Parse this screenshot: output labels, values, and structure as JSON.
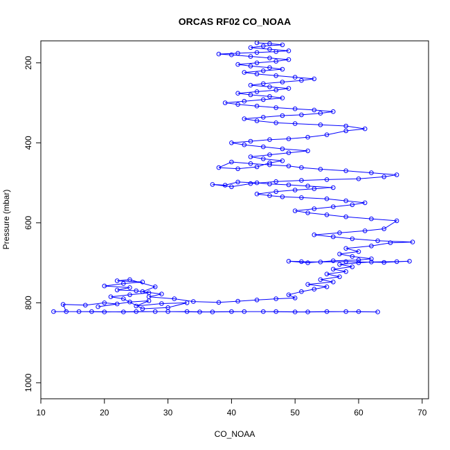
{
  "chart_data": {
    "type": "scatter",
    "title": "ORCAS RF02 CO_NOAA",
    "xlabel": "CO_NOAA",
    "ylabel": "Pressure (mbar)",
    "xlim": [
      10,
      71
    ],
    "ylim": [
      1040,
      145
    ],
    "y_reversed": true,
    "grid": false,
    "connected": true,
    "marker": "open-circle",
    "color": "#0000ff",
    "x_ticks": [
      10,
      20,
      30,
      40,
      50,
      60,
      70
    ],
    "y_ticks": [
      200,
      400,
      600,
      800,
      1000
    ],
    "series": [
      {
        "points": [
          [
            12,
            822
          ],
          [
            16,
            822
          ],
          [
            20,
            823
          ],
          [
            25,
            822
          ],
          [
            30,
            822
          ],
          [
            35,
            823
          ],
          [
            40,
            822
          ],
          [
            45,
            822
          ],
          [
            50,
            823
          ],
          [
            55,
            822
          ],
          [
            60,
            822
          ],
          [
            63,
            823
          ],
          [
            58,
            822
          ],
          [
            52,
            823
          ],
          [
            47,
            822
          ],
          [
            42,
            822
          ],
          [
            37,
            823
          ],
          [
            33,
            822
          ],
          [
            28,
            822
          ],
          [
            23,
            823
          ],
          [
            18,
            822
          ],
          [
            14,
            822
          ],
          [
            13.5,
            804
          ],
          [
            17,
            806
          ],
          [
            20,
            800
          ],
          [
            22,
            803
          ],
          [
            19,
            810
          ],
          [
            24,
            798
          ],
          [
            27,
            795
          ],
          [
            25,
            808
          ],
          [
            29,
            802
          ],
          [
            33,
            800
          ],
          [
            30,
            812
          ],
          [
            26,
            815
          ],
          [
            23,
            790
          ],
          [
            21,
            785
          ],
          [
            24,
            780
          ],
          [
            27,
            775
          ],
          [
            25,
            770
          ],
          [
            22,
            768
          ],
          [
            24,
            762
          ],
          [
            20,
            758
          ],
          [
            23,
            752
          ],
          [
            26,
            748
          ],
          [
            22,
            745
          ],
          [
            24,
            742
          ],
          [
            28,
            760
          ],
          [
            26,
            772
          ],
          [
            29,
            778
          ],
          [
            27,
            785
          ],
          [
            31,
            790
          ],
          [
            34,
            797
          ],
          [
            38,
            799
          ],
          [
            41,
            796
          ],
          [
            44,
            793
          ],
          [
            47,
            790
          ],
          [
            50,
            788
          ],
          [
            49,
            780
          ],
          [
            51,
            772
          ],
          [
            53,
            766
          ],
          [
            55,
            760
          ],
          [
            52,
            754
          ],
          [
            56,
            748
          ],
          [
            54,
            742
          ],
          [
            57,
            735
          ],
          [
            55,
            728
          ],
          [
            58,
            722
          ],
          [
            56,
            716
          ],
          [
            59,
            710
          ],
          [
            57,
            704
          ],
          [
            60,
            700
          ],
          [
            62,
            698
          ],
          [
            66,
            697
          ],
          [
            68,
            696
          ],
          [
            64,
            699
          ],
          [
            58,
            697
          ],
          [
            54,
            698
          ],
          [
            51,
            697
          ],
          [
            49,
            696
          ],
          [
            52,
            700
          ],
          [
            56,
            695
          ],
          [
            60,
            693
          ],
          [
            62,
            690
          ],
          [
            59,
            684
          ],
          [
            57,
            678
          ],
          [
            60,
            672
          ],
          [
            58,
            664
          ],
          [
            62,
            658
          ],
          [
            65,
            650
          ],
          [
            68.5,
            648
          ],
          [
            63,
            645
          ],
          [
            59,
            640
          ],
          [
            56,
            635
          ],
          [
            53,
            630
          ],
          [
            57,
            625
          ],
          [
            61,
            620
          ],
          [
            64,
            615
          ],
          [
            66,
            595
          ],
          [
            62,
            590
          ],
          [
            58,
            585
          ],
          [
            55,
            580
          ],
          [
            52,
            575
          ],
          [
            50,
            570
          ],
          [
            53,
            565
          ],
          [
            56,
            560
          ],
          [
            59,
            555
          ],
          [
            61,
            550
          ],
          [
            58,
            545
          ],
          [
            55,
            540
          ],
          [
            51,
            537
          ],
          [
            48,
            535
          ],
          [
            46,
            532
          ],
          [
            44,
            528
          ],
          [
            47,
            522
          ],
          [
            50,
            518
          ],
          [
            53,
            515
          ],
          [
            56,
            512
          ],
          [
            52,
            508
          ],
          [
            49,
            505
          ],
          [
            46,
            503
          ],
          [
            44,
            500
          ],
          [
            41,
            498
          ],
          [
            39,
            506
          ],
          [
            37,
            504
          ],
          [
            40,
            510
          ],
          [
            43,
            502
          ],
          [
            47,
            497
          ],
          [
            51,
            494
          ],
          [
            55,
            492
          ],
          [
            60,
            490
          ],
          [
            64,
            485
          ],
          [
            66,
            480
          ],
          [
            62,
            475
          ],
          [
            58,
            470
          ],
          [
            54,
            466
          ],
          [
            51,
            462
          ],
          [
            49,
            458
          ],
          [
            46,
            455
          ],
          [
            43,
            452
          ],
          [
            40,
            448
          ],
          [
            38,
            462
          ],
          [
            41,
            465
          ],
          [
            44,
            460
          ],
          [
            46,
            450
          ],
          [
            48,
            445
          ],
          [
            45,
            440
          ],
          [
            43,
            435
          ],
          [
            46,
            430
          ],
          [
            49,
            425
          ],
          [
            52,
            420
          ],
          [
            48,
            415
          ],
          [
            45,
            410
          ],
          [
            42,
            405
          ],
          [
            40,
            400
          ],
          [
            43,
            396
          ],
          [
            46,
            392
          ],
          [
            49,
            390
          ],
          [
            52,
            386
          ],
          [
            55,
            380
          ],
          [
            58,
            370
          ],
          [
            61,
            365
          ],
          [
            58,
            358
          ],
          [
            54,
            355
          ],
          [
            50,
            352
          ],
          [
            47,
            350
          ],
          [
            44,
            345
          ],
          [
            42,
            340
          ],
          [
            45,
            336
          ],
          [
            48,
            332
          ],
          [
            51,
            330
          ],
          [
            54,
            326
          ],
          [
            56,
            322
          ],
          [
            53,
            318
          ],
          [
            50,
            315
          ],
          [
            47,
            312
          ],
          [
            44,
            308
          ],
          [
            41,
            304
          ],
          [
            39,
            300
          ],
          [
            42,
            296
          ],
          [
            45,
            292
          ],
          [
            48,
            288
          ],
          [
            46,
            284
          ],
          [
            43,
            280
          ],
          [
            41,
            276
          ],
          [
            44,
            272
          ],
          [
            47,
            268
          ],
          [
            49,
            264
          ],
          [
            46,
            260
          ],
          [
            43,
            256
          ],
          [
            45,
            252
          ],
          [
            48,
            248
          ],
          [
            51,
            244
          ],
          [
            53,
            240
          ],
          [
            50,
            236
          ],
          [
            47,
            232
          ],
          [
            44,
            228
          ],
          [
            42,
            224
          ],
          [
            45,
            220
          ],
          [
            48,
            216
          ],
          [
            46,
            212
          ],
          [
            43,
            208
          ],
          [
            41,
            204
          ],
          [
            44,
            200
          ],
          [
            47,
            196
          ],
          [
            49,
            192
          ],
          [
            46,
            188
          ],
          [
            43,
            184
          ],
          [
            40,
            180
          ],
          [
            38,
            178
          ],
          [
            41,
            176
          ],
          [
            44,
            174
          ],
          [
            47,
            172
          ],
          [
            49,
            170
          ],
          [
            46,
            166
          ],
          [
            43,
            162
          ],
          [
            45,
            158
          ],
          [
            48,
            155
          ],
          [
            46,
            152
          ],
          [
            44,
            150
          ]
        ]
      }
    ]
  }
}
